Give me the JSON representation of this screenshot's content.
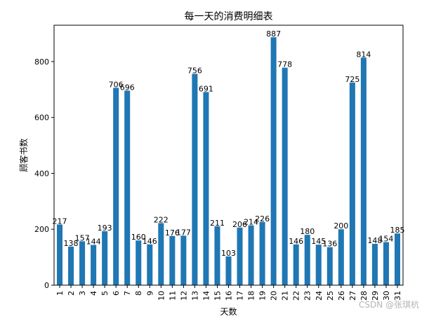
{
  "chart_data": {
    "type": "bar",
    "title": "每一天的消费明细表",
    "xlabel": "天数",
    "ylabel": "顾客书数",
    "categories": [
      "1",
      "2",
      "3",
      "4",
      "5",
      "6",
      "7",
      "8",
      "9",
      "10",
      "11",
      "12",
      "13",
      "14",
      "15",
      "16",
      "17",
      "18",
      "19",
      "20",
      "21",
      "22",
      "23",
      "24",
      "25",
      "26",
      "27",
      "28",
      "29",
      "30",
      "31"
    ],
    "values": [
      217,
      138,
      157,
      144,
      193,
      706,
      696,
      160,
      146,
      222,
      176,
      177,
      756,
      691,
      211,
      103,
      206,
      214,
      226,
      887,
      778,
      146,
      180,
      145,
      136,
      200,
      725,
      814,
      148,
      154,
      185
    ],
    "ylim": [
      0,
      930
    ],
    "yticks": [
      0,
      200,
      400,
      600,
      800
    ],
    "bar_color": "#1f77b4",
    "grid": false,
    "legend": "none"
  },
  "watermark": "CSDN @张琪杭"
}
